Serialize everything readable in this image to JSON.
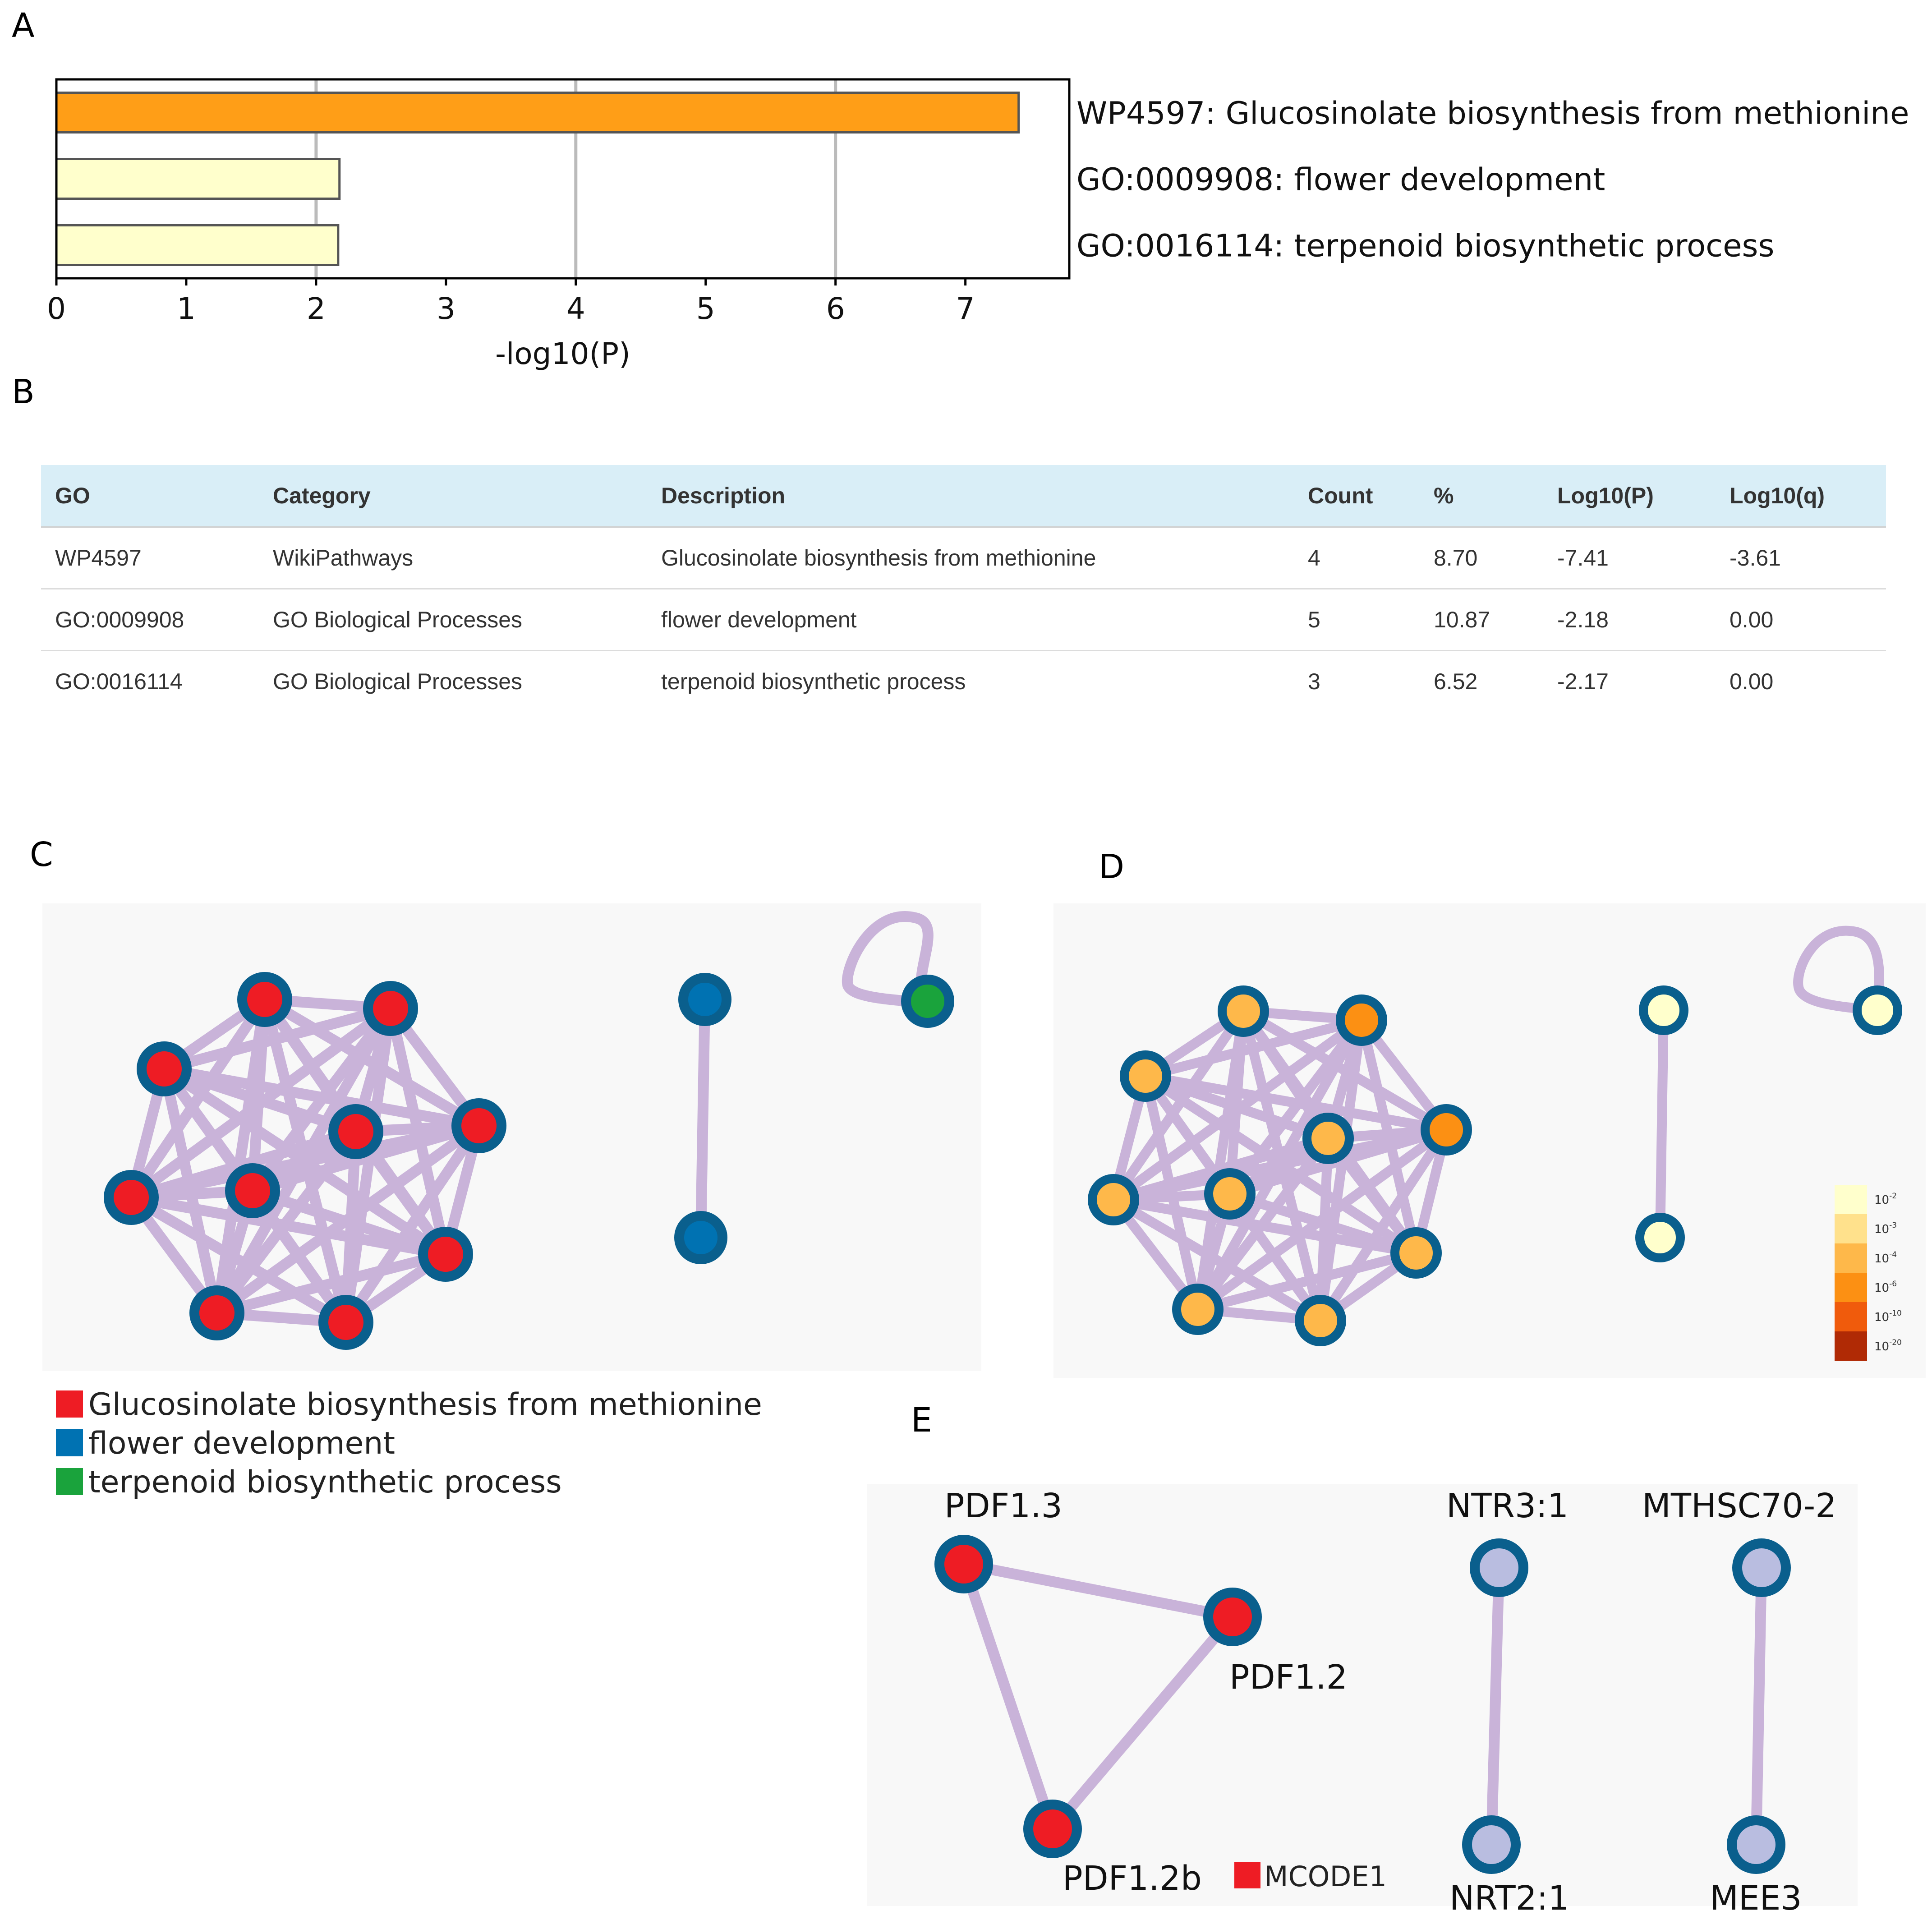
{
  "panels": {
    "a": "A",
    "b": "B",
    "c": "C",
    "d": "D",
    "e": "E"
  },
  "chart_data": {
    "type": "bar",
    "orientation": "horizontal",
    "categories": [
      "WP4597: Glucosinolate biosynthesis from methionine",
      "GO:0009908: flower development",
      "GO:0016114: terpenoid biosynthetic process"
    ],
    "values": [
      7.41,
      2.18,
      2.17
    ],
    "bar_colors": [
      "#ff9e17",
      "#ffffcc",
      "#ffffcc"
    ],
    "xlabel": "-log10(P)",
    "ylabel": "",
    "xlim": [
      0,
      7.8
    ],
    "xticks": [
      "0",
      "1",
      "2",
      "3",
      "4",
      "5",
      "6",
      "7"
    ],
    "grid_values": [
      2,
      4,
      6
    ]
  },
  "table": {
    "headers": [
      "GO",
      "Category",
      "Description",
      "Count",
      "%",
      "Log10(P)",
      "Log10(q)"
    ],
    "rows": [
      [
        "WP4597",
        "WikiPathways",
        "Glucosinolate biosynthesis from methionine",
        "4",
        "8.70",
        "-7.41",
        "-3.61"
      ],
      [
        "GO:0009908",
        "GO Biological Processes",
        "flower development",
        "5",
        "10.87",
        "-2.18",
        "0.00"
      ],
      [
        "GO:0016114",
        "GO Biological Processes",
        "terpenoid biosynthetic process",
        "3",
        "6.52",
        "-2.17",
        "0.00"
      ]
    ]
  },
  "network_c": {
    "legend": [
      {
        "label": "Glucosinolate biosynthesis from methionine",
        "color": "#ee1c24"
      },
      {
        "label": "flower development",
        "color": "#0072b2"
      },
      {
        "label": "terpenoid biosynthetic process",
        "color": "#1aa33c"
      }
    ]
  },
  "network_d": {
    "legend_labels": [
      "10-2",
      "10-3",
      "10-4",
      "10-6",
      "10-10",
      "10-20"
    ],
    "legend_exponents": [
      "-2",
      "-3",
      "-4",
      "-6",
      "-10",
      "-20"
    ],
    "legend_colors": [
      "#ffffcc",
      "#ffe18c",
      "#feb84a",
      "#fc9013",
      "#f05b0c",
      "#b02a05"
    ]
  },
  "network_e": {
    "labels": [
      "PDF1.3",
      "PDF1.2",
      "PDF1.2b",
      "NTR3:1",
      "NRT2:1",
      "MTHSC70-2",
      "MEE3"
    ],
    "legend": "MCODE1",
    "mcode_color": "#ee1c24",
    "other_color": "#b9bde0"
  }
}
